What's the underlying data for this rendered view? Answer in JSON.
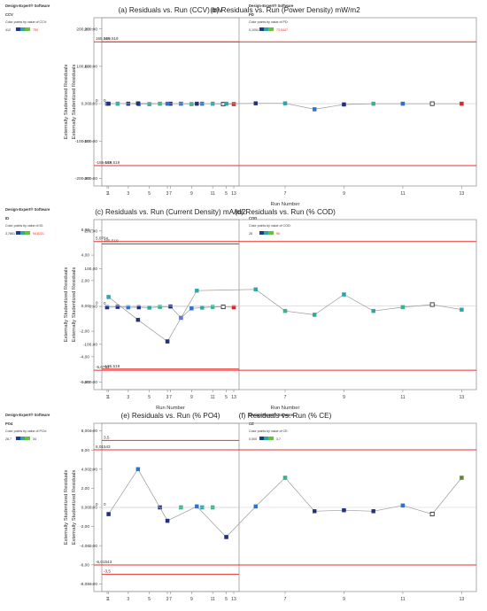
{
  "colors": {
    "limit": "#e8322f",
    "line": "#999999",
    "axis": "#999999",
    "text": "#333333",
    "marker_edge": "#1a1a1a"
  },
  "chart_data": [
    {
      "type": "scatter",
      "title": "(a) Residuals vs. Run (CCV)  mV",
      "ylabel": "Externally Studentized Residuals",
      "xlabel": "",
      "xticks": [
        "1",
        "3",
        "5",
        "7",
        "9",
        "11",
        "13"
      ],
      "xlim": [
        0.5,
        13.5
      ],
      "yticks": [
        "200,00",
        "100,00",
        "0,00",
        "-100,00",
        "-200,00"
      ],
      "ytick_values": [
        200,
        100,
        0,
        -100,
        -200
      ],
      "ylim": [
        -220,
        230
      ],
      "upper_limit": 165.519,
      "lower_limit": -165.519,
      "upper_label": "165,519",
      "lower_label": "-165,519",
      "zero_label": "0",
      "x": [
        1,
        2,
        3,
        4,
        5,
        6,
        7,
        8,
        9,
        10,
        11,
        12,
        13
      ],
      "y": [
        0,
        0,
        0,
        -1,
        -1,
        0,
        0,
        0,
        -1,
        0,
        0,
        -1,
        -1
      ],
      "colors": [
        "#2f73c9",
        "#2fa6a6",
        "#22317a",
        "#2f73c9",
        "#2fa6a6",
        "#3cb08a",
        "#22317a",
        "#2f73c9",
        "#3cb08a",
        "#2f73c9",
        "#2fa6a6",
        "#d9d9d9",
        "#d62a2a"
      ],
      "hollow_index": 11,
      "side": {
        "brand": "Design-Expert® Software",
        "var": "CCV",
        "desc": "Color points by value of CCV:",
        "min": "412",
        "max": "750",
        "max_color": "#d62a2a"
      }
    },
    {
      "type": "scatter",
      "title": "(b) Residuals vs. Run (Power Density) mW/m2",
      "ylabel": "Externally Studentized Residuals",
      "xlabel": "Run Number",
      "xticks": [
        "1",
        "3",
        "5",
        "7",
        "9",
        "11",
        "13"
      ],
      "xlim": [
        0.5,
        13.5
      ],
      "yticks": [
        "200,00",
        "100,00",
        "0,00",
        "-100,00",
        "-200,00"
      ],
      "ytick_values": [
        200,
        100,
        0,
        -100,
        -200
      ],
      "ylim": [
        -220,
        230
      ],
      "upper_limit": 165.519,
      "lower_limit": -165.519,
      "upper_label": "165,519",
      "lower_label": "-165,519",
      "zero_label": "0",
      "x": [
        1,
        2,
        3,
        4,
        5,
        6,
        7,
        8,
        9,
        10,
        11,
        12,
        13
      ],
      "y": [
        0,
        1,
        0,
        0,
        0,
        1,
        1,
        -15,
        -2,
        0,
        0,
        0,
        0
      ],
      "colors": [
        "#22317a",
        "#22317a",
        "#2f73c9",
        "#22317a",
        "#2fa6a6",
        "#22317a",
        "#2fa6a6",
        "#2f73c9",
        "#22317a",
        "#3cb08a",
        "#2f73c9",
        "#d9d9d9",
        "#d62a2a"
      ],
      "hollow_index": 11,
      "side": {
        "brand": "Design-Expert® Software",
        "var": "PD",
        "desc": "Color points by value of PD:",
        "min": "0,1004",
        "max": "73,5447",
        "max_color": "#d62a2a"
      }
    },
    {
      "type": "scatter",
      "title": "(c) Residuals vs. Run (Current  Density) mA/m2",
      "ylabel": "Externally Studentized Residuals",
      "xlabel": "Run Number",
      "xticks": [
        "1",
        "3",
        "5",
        "7",
        "9",
        "11",
        "13"
      ],
      "xlim": [
        0.5,
        13.5
      ],
      "yticks": [
        "200,00",
        "100,00",
        "0,00",
        "-100,00",
        "-200,00"
      ],
      "ytick_values": [
        200,
        100,
        0,
        -100,
        -200
      ],
      "ylim": [
        -220,
        230
      ],
      "upper_limit": 165.519,
      "lower_limit": -165.519,
      "upper_label": "165,519",
      "lower_label": "-165,519",
      "zero_label": "0",
      "x": [
        1,
        2,
        3,
        4,
        5,
        6,
        7,
        8,
        9,
        10,
        11,
        12,
        13
      ],
      "y": [
        -2,
        -1,
        -2,
        -2,
        -3,
        -1,
        0,
        -30,
        -5,
        -3,
        -1,
        -1,
        -2
      ],
      "colors": [
        "#22317a",
        "#22317a",
        "#2f73c9",
        "#22317a",
        "#2fa6a6",
        "#3cb08a",
        "#22317a",
        "#5a6bd1",
        "#2f73c9",
        "#2fa6a6",
        "#3cb08a",
        "#d9d9d9",
        "#d62a2a"
      ],
      "hollow_index": 11,
      "side": {
        "brand": "Design-Expert® Software",
        "var": "ID",
        "desc": "Color points by value of ID:",
        "min": "3,7861",
        "max": "94,6221",
        "max_color": "#d62a2a"
      }
    },
    {
      "type": "scatter",
      "title": "(d) Residuals vs. Run (% COD)",
      "ylabel": "Externally Studentized Residuals",
      "xlabel": "Run Number",
      "xticks": [
        "1",
        "3",
        "5",
        "7",
        "9",
        "11",
        "13"
      ],
      "xlim": [
        0.5,
        13.5
      ],
      "yticks": [
        "6,00",
        "4,00",
        "2,00",
        "0,00",
        "-2,00",
        "-4,00",
        "-6,00"
      ],
      "ytick_values": [
        6,
        4,
        2,
        0,
        -2,
        -4,
        -6
      ],
      "ylim": [
        -6.6,
        6.8
      ],
      "upper_limit": 5.0764,
      "lower_limit": -5.0764,
      "upper_label": "5,0764",
      "lower_label": "-5,0764",
      "zero_label": "0",
      "x": [
        1,
        2,
        3,
        4,
        5,
        6,
        7,
        8,
        9,
        10,
        11,
        12,
        13
      ],
      "y": [
        0.7,
        -1.1,
        -2.8,
        1.2,
        null,
        1.3,
        -0.4,
        -0.7,
        0.9,
        -0.4,
        -0.1,
        0.1,
        -0.3
      ],
      "colors": [
        "#2fa6a6",
        "#22317a",
        "#22317a",
        "#2fa6a6",
        "#2fa6a6",
        "#2fa6a6",
        "#3cb08a",
        "#2fa6a6",
        "#2fa6a6",
        "#2fa6a6",
        "#3cb08a",
        "#d9d9d9",
        "#2fa6a6"
      ],
      "hollow_index": 11,
      "side": {
        "brand": "",
        "var": "COD",
        "desc": "Color points by value of COD:",
        "min": "28",
        "max": "90",
        "max_color": "#d62a2a"
      }
    },
    {
      "type": "scatter",
      "title": "(e) Residuals vs. Run (% PO4)",
      "ylabel": "Externally Studentized Residuals",
      "xlabel": "Run Number",
      "xticks": [
        "1",
        "3",
        "5",
        "7",
        "9",
        "11",
        "13"
      ],
      "xlim": [
        0.5,
        13.5
      ],
      "yticks": [
        "4,00",
        "2,00",
        "0,00",
        "-2,00",
        "-4,00"
      ],
      "ytick_values": [
        4,
        2,
        0,
        -2,
        -4
      ],
      "ylim": [
        -4.4,
        4.4
      ],
      "upper_limit": 3.5,
      "lower_limit": -3.5,
      "upper_label": "3,5",
      "lower_label": "-3,5",
      "zero_label": "0",
      "x": [
        6,
        8,
        10,
        11
      ],
      "y": [
        0,
        0,
        0,
        0
      ],
      "colors": [
        "#22317a",
        "#3cb08a",
        "#2fa6a6",
        "#3cb08a"
      ],
      "hollow_index": -1,
      "side": {
        "brand": "Design-Expert® Software",
        "var": "PO4",
        "desc": "Color points by value of PO4:",
        "min": "28,7",
        "max": "34",
        "max_color": "#333333"
      }
    },
    {
      "type": "scatter",
      "title": "(f) Residuals vs. Run (% CE)",
      "ylabel": "Externally Studentized Residuals",
      "xlabel": "Run Number",
      "xticks": [
        "1",
        "3",
        "5",
        "7",
        "9",
        "11",
        "13"
      ],
      "xlim": [
        0.5,
        13.5
      ],
      "yticks": [
        "8,00",
        "6,00",
        "4,00",
        "2,00",
        "0,00",
        "-2,00",
        "-4,00",
        "-6,00",
        "-8,00"
      ],
      "ytick_values": [
        8,
        6,
        4,
        2,
        0,
        -2,
        -4,
        -6,
        -8
      ],
      "ylim": [
        -8.8,
        8.8
      ],
      "upper_limit": 6.01543,
      "lower_limit": -6.01543,
      "upper_label": "6,01543",
      "lower_label": "-6,01543",
      "zero_label": "0",
      "x": [
        1,
        2,
        3,
        4,
        5,
        6,
        7,
        8,
        9,
        10,
        11,
        12,
        13
      ],
      "y": [
        -0.7,
        4.0,
        -1.4,
        0.1,
        -3.1,
        0.1,
        3.1,
        -0.4,
        -0.3,
        -0.4,
        0.2,
        -0.7,
        3.1
      ],
      "colors": [
        "#22317a",
        "#2f73c9",
        "#22317a",
        "#2f73c9",
        "#22317a",
        "#2f73c9",
        "#3cb08a",
        "#22317a",
        "#22317a",
        "#22317a",
        "#2f73c9",
        "#d9d9d9",
        "#5f8a2a"
      ],
      "hollow_index": 11,
      "side": {
        "brand": "Design-Expert® Software",
        "var": "CE",
        "desc": "Color points by value of CE:",
        "min": "0,000",
        "max": "3,7",
        "max_color": "#333333"
      }
    }
  ]
}
